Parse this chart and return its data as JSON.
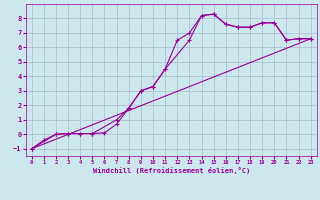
{
  "xlabel": "Windchill (Refroidissement éolien,°C)",
  "bg_color": "#cce8ee",
  "grid_color": "#aabbcc",
  "line_color": "#990099",
  "xlim": [
    -0.5,
    23.5
  ],
  "ylim": [
    -1.5,
    9.0
  ],
  "xticks": [
    0,
    1,
    2,
    3,
    4,
    5,
    6,
    7,
    8,
    9,
    10,
    11,
    12,
    13,
    14,
    15,
    16,
    17,
    18,
    19,
    20,
    21,
    22,
    23
  ],
  "yticks": [
    -1,
    0,
    1,
    2,
    3,
    4,
    5,
    6,
    7,
    8
  ],
  "line1_x": [
    0,
    1,
    2,
    3,
    4,
    5,
    6,
    7,
    8,
    9,
    10,
    11,
    12,
    13,
    14,
    15,
    16,
    17,
    18,
    19,
    20,
    21,
    22,
    23
  ],
  "line1_y": [
    -1.0,
    -0.4,
    0.0,
    0.05,
    0.05,
    0.05,
    0.1,
    0.7,
    1.8,
    3.0,
    3.3,
    4.5,
    6.5,
    7.0,
    8.2,
    8.3,
    7.6,
    7.4,
    7.4,
    7.7,
    7.7,
    6.5,
    6.6,
    6.6
  ],
  "line2_x": [
    0,
    2,
    3,
    4,
    5,
    7,
    8,
    9,
    10,
    11,
    13,
    14,
    15,
    16,
    17,
    18,
    19,
    20,
    21,
    22,
    23
  ],
  "line2_y": [
    -1.0,
    0.0,
    0.05,
    0.05,
    0.05,
    1.0,
    1.8,
    3.0,
    3.3,
    4.5,
    6.5,
    8.2,
    8.3,
    7.6,
    7.4,
    7.4,
    7.7,
    7.7,
    6.5,
    6.6,
    6.6
  ],
  "line3_x": [
    0,
    23
  ],
  "line3_y": [
    -1.0,
    6.6
  ]
}
